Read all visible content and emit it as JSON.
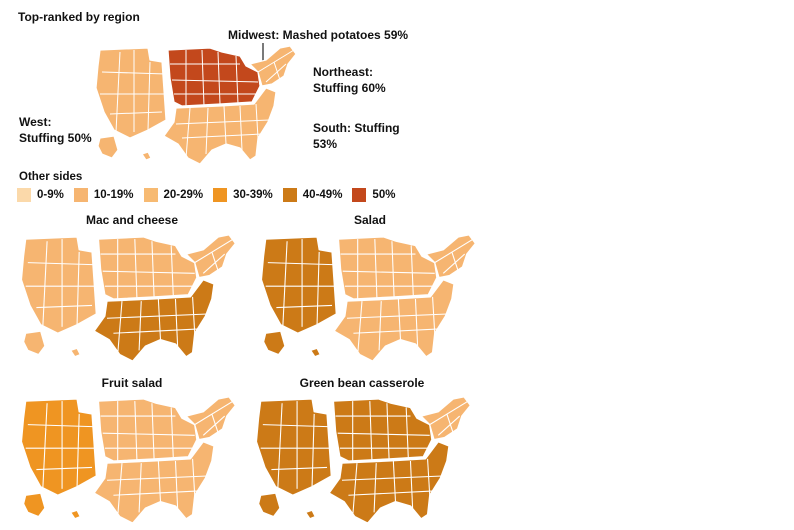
{
  "header": {
    "title": "Top-ranked by region"
  },
  "regions": {
    "midwest": {
      "label": "Midwest: Mashed potatoes 59%"
    },
    "northeast": {
      "label_line1": "Northeast:",
      "label_line2": "Stuffing 60%"
    },
    "west": {
      "label_line1": "West:",
      "label_line2": "Stuffing 50%"
    },
    "south": {
      "label_line1": "South: Stuffing",
      "label_line2": "53%"
    }
  },
  "legend": {
    "title": "Other sides",
    "items": [
      {
        "label": "0-9%",
        "color": "#fbd9aa"
      },
      {
        "label": "10-19%",
        "color": "#f6b571"
      },
      {
        "label": "20-29%",
        "color": "#f7ba72"
      },
      {
        "label": "30-39%",
        "color": "#ef9522"
      },
      {
        "label": "40-49%",
        "color": "#cc7a17"
      },
      {
        "label": "50%",
        "color": "#c3481c"
      }
    ]
  },
  "maps": [
    {
      "title": "Mac and cheese",
      "regions": {
        "west": "10-19%",
        "midwest": "10-19%",
        "northeast": "10-19%",
        "south": "40-49%"
      }
    },
    {
      "title": "Salad",
      "regions": {
        "west": "40-49%",
        "midwest": "10-19%",
        "northeast": "10-19%",
        "south": "10-19%"
      }
    },
    {
      "title": "Fruit salad",
      "regions": {
        "west": "30-39%",
        "midwest": "10-19%",
        "northeast": "10-19%",
        "south": "10-19%"
      }
    },
    {
      "title": "Green bean casserole",
      "regions": {
        "west": "40-49%",
        "midwest": "40-49%",
        "northeast": "10-19%",
        "south": "40-49%"
      }
    }
  ],
  "top_map": {
    "regions": {
      "west": "10-19%",
      "midwest": "50%",
      "northeast": "10-19%",
      "south": "10-19%"
    }
  }
}
